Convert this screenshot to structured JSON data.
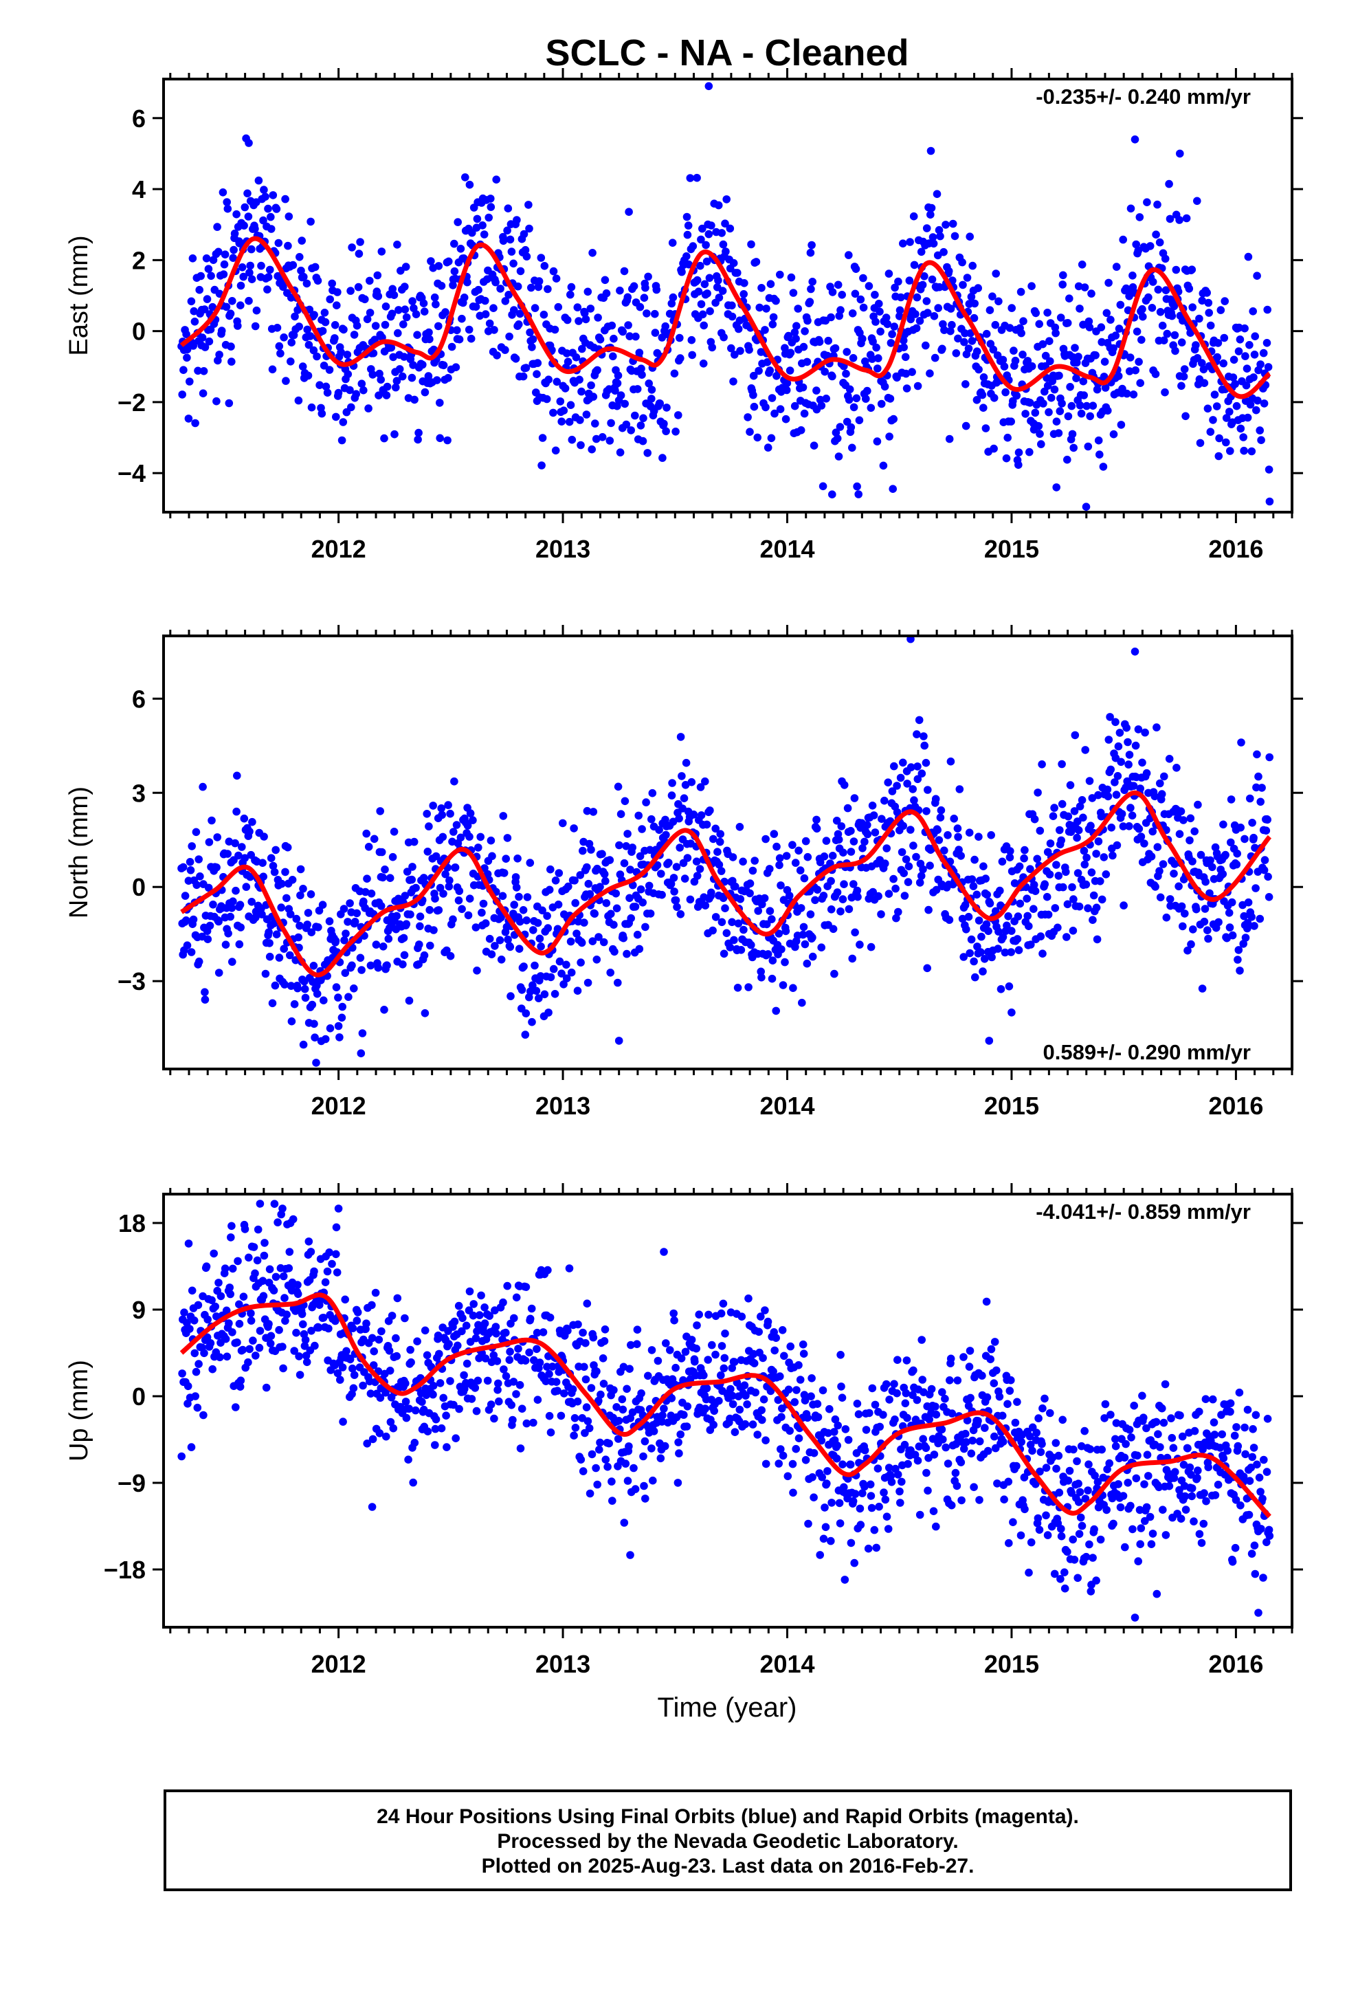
{
  "title": "SCLC  - NA - Cleaned",
  "xlabel": "Time (year)",
  "colors": {
    "final_orbits": "#0000ff",
    "fit_line": "#ff0000",
    "rapid_orbits": "#ff00ff"
  },
  "footer": {
    "line1": "24 Hour Positions Using Final Orbits (blue) and Rapid Orbits (magenta).",
    "line2": "Processed by the Nevada Geodetic Laboratory.",
    "line3": "Plotted on 2025-Aug-23. Last data on 2016-Feb-27."
  },
  "chart_data": [
    {
      "type": "scatter",
      "ylabel": "East (mm)",
      "rate": "-0.235+/- 0.240 mm/yr",
      "rate_position": "top-right",
      "xlim": [
        2011.22,
        2016.25
      ],
      "ylim": [
        -5.1,
        7.1
      ],
      "yticks": [
        -4,
        -2,
        0,
        2,
        4,
        6
      ],
      "xticks": [
        2012,
        2013,
        2014,
        2015,
        2016
      ],
      "grid": false,
      "series": [
        {
          "role": "points",
          "scatter_sd": 1.3,
          "seed": 11,
          "x_range": [
            2011.3,
            2016.15
          ]
        },
        {
          "role": "fit",
          "x": [
            2011.3,
            2011.45,
            2011.62,
            2011.8,
            2012.0,
            2012.2,
            2012.35,
            2012.45,
            2012.62,
            2012.8,
            2013.0,
            2013.2,
            2013.35,
            2013.45,
            2013.62,
            2013.8,
            2014.0,
            2014.2,
            2014.35,
            2014.45,
            2014.62,
            2014.8,
            2015.0,
            2015.2,
            2015.35,
            2015.45,
            2015.62,
            2015.8,
            2016.0,
            2016.15
          ],
          "y": [
            -0.4,
            0.5,
            2.6,
            1.1,
            -0.9,
            -0.3,
            -0.6,
            -0.5,
            2.4,
            0.9,
            -1.1,
            -0.5,
            -0.8,
            -0.7,
            2.2,
            0.7,
            -1.3,
            -0.8,
            -1.1,
            -1.0,
            1.9,
            0.4,
            -1.6,
            -1.0,
            -1.3,
            -1.2,
            1.7,
            0.2,
            -1.8,
            -1.2
          ]
        }
      ],
      "outliers": {
        "x": [
          2013.65,
          2011.6,
          2015.55,
          2015.75,
          2016.15,
          2014.2,
          2015.2
        ],
        "y": [
          6.9,
          5.3,
          5.4,
          5.0,
          -4.8,
          -4.6,
          -4.4
        ]
      }
    },
    {
      "type": "scatter",
      "ylabel": "North (mm)",
      "rate": "0.589+/- 0.290 mm/yr",
      "rate_position": "bottom-right",
      "xlim": [
        2011.22,
        2016.25
      ],
      "ylim": [
        -5.8,
        8.0
      ],
      "yticks": [
        -3,
        0,
        3,
        6
      ],
      "xticks": [
        2012,
        2013,
        2014,
        2015,
        2016
      ],
      "grid": false,
      "series": [
        {
          "role": "points",
          "scatter_sd": 1.3,
          "seed": 23,
          "x_range": [
            2011.3,
            2016.15
          ]
        },
        {
          "role": "fit",
          "x": [
            2011.3,
            2011.45,
            2011.6,
            2011.75,
            2011.9,
            2012.05,
            2012.2,
            2012.35,
            2012.55,
            2012.7,
            2012.9,
            2013.05,
            2013.2,
            2013.35,
            2013.55,
            2013.7,
            2013.9,
            2014.05,
            2014.2,
            2014.35,
            2014.55,
            2014.7,
            2014.9,
            2015.05,
            2015.2,
            2015.35,
            2015.55,
            2015.7,
            2015.9,
            2016.15
          ],
          "y": [
            -0.8,
            -0.1,
            0.6,
            -1.3,
            -2.8,
            -1.8,
            -0.8,
            -0.4,
            1.2,
            -0.4,
            -2.1,
            -0.9,
            -0.1,
            0.4,
            1.8,
            0.1,
            -1.5,
            -0.3,
            0.6,
            0.9,
            2.4,
            0.8,
            -1.0,
            0.1,
            1.0,
            1.5,
            3.0,
            1.4,
            -0.4,
            1.6
          ]
        }
      ],
      "outliers": {
        "x": [
          2014.55,
          2015.55,
          2011.9,
          2012.1,
          2014.9,
          2013.25,
          2015.0
        ],
        "y": [
          7.9,
          7.5,
          -5.6,
          -5.3,
          -4.9,
          -4.9,
          -4.0
        ]
      }
    },
    {
      "type": "scatter",
      "ylabel": "Up (mm)",
      "rate": "-4.041+/- 0.859 mm/yr",
      "rate_position": "top-right",
      "xlim": [
        2011.22,
        2016.25
      ],
      "ylim": [
        -24.0,
        21.0
      ],
      "yticks": [
        -18,
        -9,
        0,
        9,
        18
      ],
      "xticks": [
        2012,
        2013,
        2014,
        2015,
        2016
      ],
      "grid": false,
      "series": [
        {
          "role": "points",
          "scatter_sd": 4.2,
          "seed": 37,
          "x_range": [
            2011.3,
            2016.15
          ]
        },
        {
          "role": "fit",
          "x": [
            2011.3,
            2011.45,
            2011.6,
            2011.8,
            2011.95,
            2012.1,
            2012.25,
            2012.35,
            2012.5,
            2012.7,
            2012.9,
            2013.1,
            2013.25,
            2013.35,
            2013.5,
            2013.7,
            2013.9,
            2014.1,
            2014.25,
            2014.35,
            2014.5,
            2014.7,
            2014.9,
            2015.1,
            2015.25,
            2015.35,
            2015.5,
            2015.7,
            2015.9,
            2016.15
          ],
          "y": [
            4.5,
            7.5,
            9.2,
            9.6,
            10.2,
            4.0,
            0.5,
            1.0,
            4.0,
            5.2,
            5.5,
            0.3,
            -3.8,
            -2.8,
            0.8,
            1.5,
            1.8,
            -4.0,
            -8.0,
            -7.0,
            -3.8,
            -2.8,
            -2.0,
            -8.0,
            -12.0,
            -11.0,
            -7.5,
            -6.8,
            -6.5,
            -12.5
          ]
        }
      ],
      "outliers": {
        "x": [
          2011.65,
          2011.75,
          2012.0,
          2013.45,
          2015.55,
          2016.1,
          2012.15,
          2013.3
        ],
        "y": [
          20.0,
          19.5,
          19.5,
          15.0,
          -23.0,
          -22.5,
          -11.5,
          -16.5
        ]
      }
    }
  ]
}
